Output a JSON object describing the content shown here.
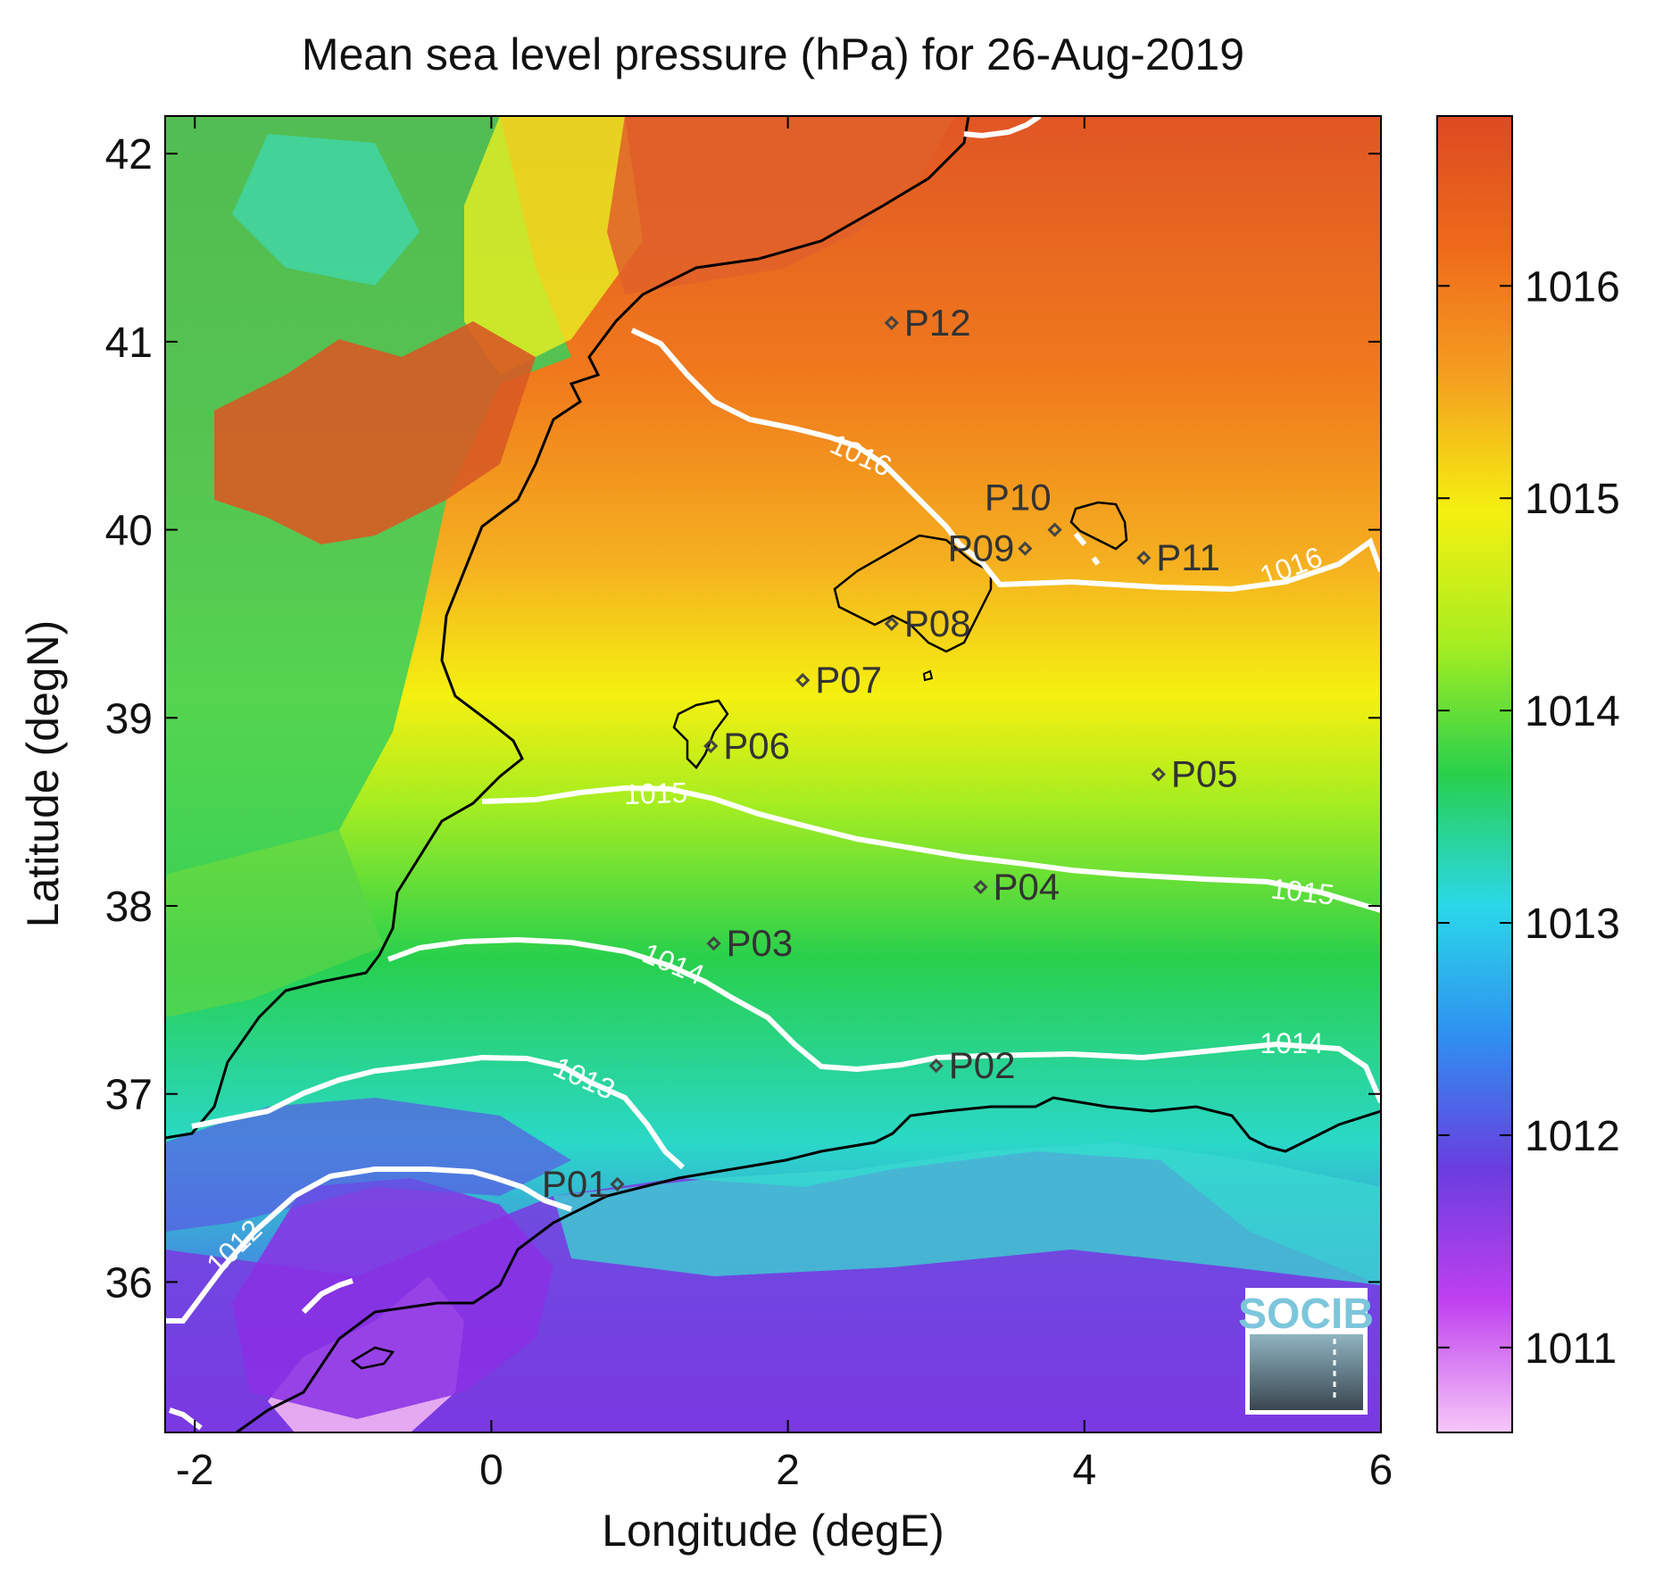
{
  "title": "Mean sea level pressure (hPa) for 26-Aug-2019",
  "xlabel": "Longitude (degE)",
  "ylabel": "Latitude (degN)",
  "x_ticks": [
    "-2",
    "0",
    "2",
    "4",
    "6"
  ],
  "y_ticks": [
    "36",
    "37",
    "38",
    "39",
    "40",
    "41",
    "42"
  ],
  "colorbar_ticks": [
    "1011",
    "1012",
    "1013",
    "1014",
    "1015",
    "1016"
  ],
  "contour_labels": [
    {
      "text": "1012",
      "value": 1012
    },
    {
      "text": "1013",
      "value": 1013
    },
    {
      "text": "1014",
      "value": 1014
    },
    {
      "text": "1014",
      "value": 1014
    },
    {
      "text": "1015",
      "value": 1015
    },
    {
      "text": "1015",
      "value": 1015
    },
    {
      "text": "1016",
      "value": 1016
    },
    {
      "text": "1016",
      "value": 1016
    }
  ],
  "stations": [
    {
      "id": "P01",
      "lon": 0.85,
      "lat": 36.52
    },
    {
      "id": "P02",
      "lon": 3.0,
      "lat": 37.15
    },
    {
      "id": "P03",
      "lon": 1.5,
      "lat": 37.8
    },
    {
      "id": "P04",
      "lon": 3.3,
      "lat": 38.1
    },
    {
      "id": "P05",
      "lon": 4.5,
      "lat": 38.7
    },
    {
      "id": "P06",
      "lon": 1.48,
      "lat": 38.85
    },
    {
      "id": "P07",
      "lon": 2.1,
      "lat": 39.2
    },
    {
      "id": "P08",
      "lon": 2.7,
      "lat": 39.5
    },
    {
      "id": "P09",
      "lon": 3.6,
      "lat": 39.9
    },
    {
      "id": "P10",
      "lon": 3.8,
      "lat": 40.0
    },
    {
      "id": "P11",
      "lon": 4.4,
      "lat": 39.85
    },
    {
      "id": "P12",
      "lon": 2.7,
      "lat": 41.1
    }
  ],
  "map_extent": {
    "lon_min": -2.2,
    "lon_max": 6.0,
    "lat_min": 35.2,
    "lat_max": 42.2
  },
  "colorbar_range": [
    1010.6,
    1016.8
  ],
  "colors": {
    "colormap": [
      "#f6c8f8",
      "#c040f0",
      "#6a3de0",
      "#2f8ff0",
      "#2ad8ea",
      "#28d04c",
      "#a8ee20",
      "#f5f010",
      "#f5a020",
      "#ee6a1a",
      "#dd4a22"
    ],
    "contour": "#ffffff",
    "coastline": "#000000",
    "station_marker": "#444444"
  },
  "logo": {
    "text": "SOCIB"
  }
}
